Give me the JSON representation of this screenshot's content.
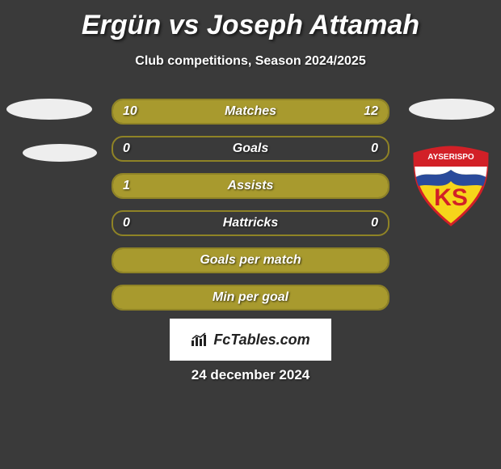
{
  "title": "Ergün vs Joseph Attamah",
  "subtitle": "Club competitions, Season 2024/2025",
  "date": "24 december 2024",
  "watermark_text": "FcTables.com",
  "colors": {
    "accent": "#a89a2e",
    "accent_border": "#8f8326",
    "background": "#3a3a3a",
    "badge_blue": "#2a4b9b",
    "badge_red": "#d22027",
    "badge_yellow": "#f6d51a",
    "badge_white": "#ffffff"
  },
  "bars": [
    {
      "label": "Matches",
      "left_val": "10",
      "right_val": "12",
      "left_pct": 45,
      "right_pct": 55
    },
    {
      "label": "Goals",
      "left_val": "0",
      "right_val": "0",
      "left_pct": 0,
      "right_pct": 0
    },
    {
      "label": "Assists",
      "left_val": "1",
      "right_val": "",
      "left_pct": 100,
      "right_pct": 0
    },
    {
      "label": "Hattricks",
      "left_val": "0",
      "right_val": "0",
      "left_pct": 0,
      "right_pct": 0
    },
    {
      "label": "Goals per match",
      "left_val": "",
      "right_val": "",
      "left_pct": 100,
      "right_pct": 0,
      "full_fill": true
    },
    {
      "label": "Min per goal",
      "left_val": "",
      "right_val": "",
      "left_pct": 100,
      "right_pct": 0,
      "full_fill": true
    }
  ]
}
